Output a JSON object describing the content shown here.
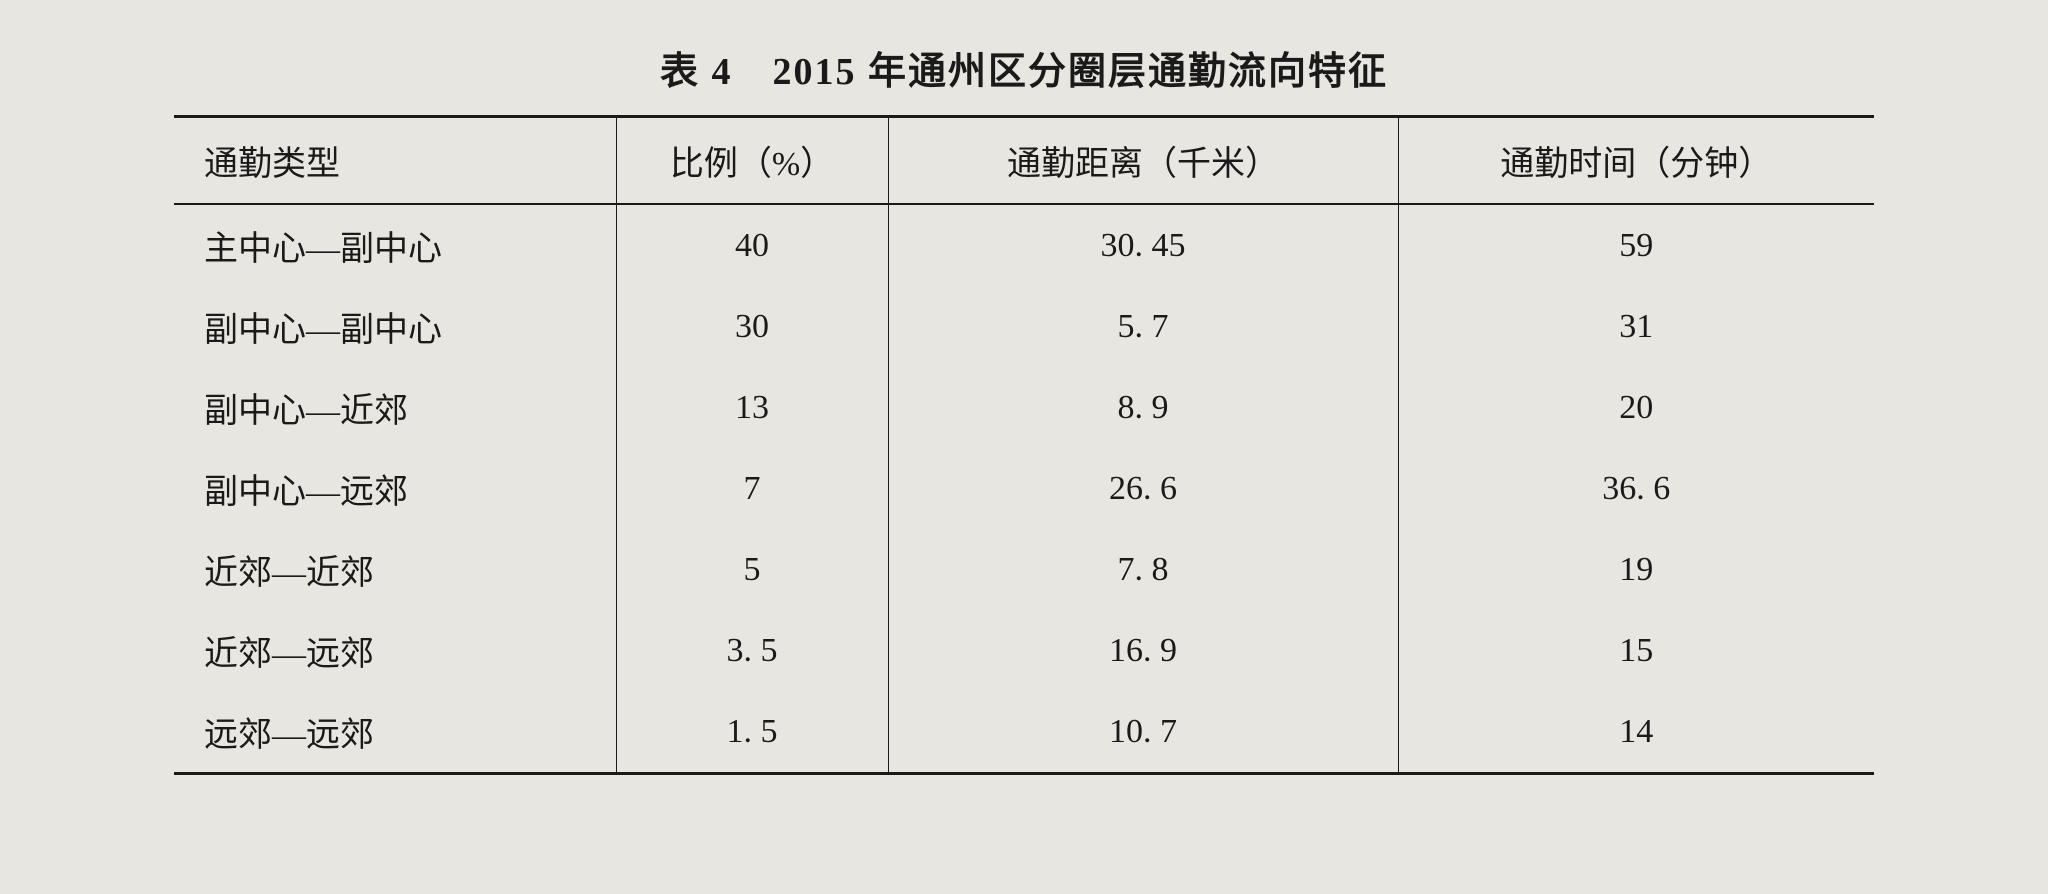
{
  "table": {
    "title": "表 4　2015 年通州区分圈层通勤流向特征",
    "columns": [
      "通勤类型",
      "比例（%）",
      "通勤距离（千米）",
      "通勤时间（分钟）"
    ],
    "rows": [
      [
        "主中心—副中心",
        "40",
        "30. 45",
        "59"
      ],
      [
        "副中心—副中心",
        "30",
        "5. 7",
        "31"
      ],
      [
        "副中心—近郊",
        "13",
        "8. 9",
        "20"
      ],
      [
        "副中心—远郊",
        "7",
        "26. 6",
        "36. 6"
      ],
      [
        "近郊—近郊",
        "5",
        "7. 8",
        "19"
      ],
      [
        "近郊—远郊",
        "3. 5",
        "16. 9",
        "15"
      ],
      [
        "远郊—远郊",
        "1. 5",
        "10. 7",
        "14"
      ]
    ],
    "styling": {
      "background_color": "#e8e6e0",
      "text_color": "#1a1a1a",
      "border_color": "#1a1a1a",
      "top_border_width": 3,
      "header_bottom_border_width": 2,
      "bottom_border_width": 3,
      "vertical_border_width": 1.5,
      "title_fontsize": 38,
      "cell_fontsize": 34,
      "font_family": "SimSun",
      "column_widths_pct": [
        26,
        16,
        30,
        28
      ],
      "column_alignment": [
        "left",
        "center",
        "center",
        "center"
      ]
    }
  }
}
